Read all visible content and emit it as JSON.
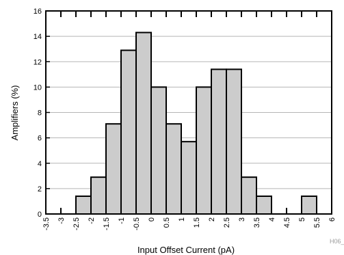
{
  "chart_data": {
    "type": "bar",
    "xlabel": "Input Offset Current (pA)",
    "ylabel": "Amplifiers (%)",
    "watermark": "H06_",
    "x_tick_labels": [
      "-3.5",
      "-3",
      "-2.5",
      "-2",
      "-1.5",
      "-1",
      "-0.5",
      "0",
      "0.5",
      "1",
      "1.5",
      "2",
      "2.5",
      "3",
      "3.5",
      "4",
      "4.5",
      "5",
      "5.5",
      "6"
    ],
    "y_tick_labels": [
      "0",
      "2",
      "4",
      "6",
      "8",
      "10",
      "12",
      "14",
      "16"
    ],
    "ylim": [
      0,
      16
    ],
    "xlim": [
      -3.5,
      6
    ],
    "bin_width": 0.5,
    "grid": true,
    "bar_color": "#cccccc",
    "bars": [
      {
        "start": -2.5,
        "value": 1.4
      },
      {
        "start": -2.0,
        "value": 2.9
      },
      {
        "start": -1.5,
        "value": 7.1
      },
      {
        "start": -1.0,
        "value": 12.9
      },
      {
        "start": -0.5,
        "value": 14.3
      },
      {
        "start": 0.0,
        "value": 10.0
      },
      {
        "start": 0.5,
        "value": 7.1
      },
      {
        "start": 1.0,
        "value": 5.7
      },
      {
        "start": 1.5,
        "value": 10.0
      },
      {
        "start": 2.0,
        "value": 11.4
      },
      {
        "start": 2.5,
        "value": 11.4
      },
      {
        "start": 3.0,
        "value": 2.9
      },
      {
        "start": 3.5,
        "value": 1.4
      },
      {
        "start": 5.0,
        "value": 1.4
      }
    ]
  }
}
